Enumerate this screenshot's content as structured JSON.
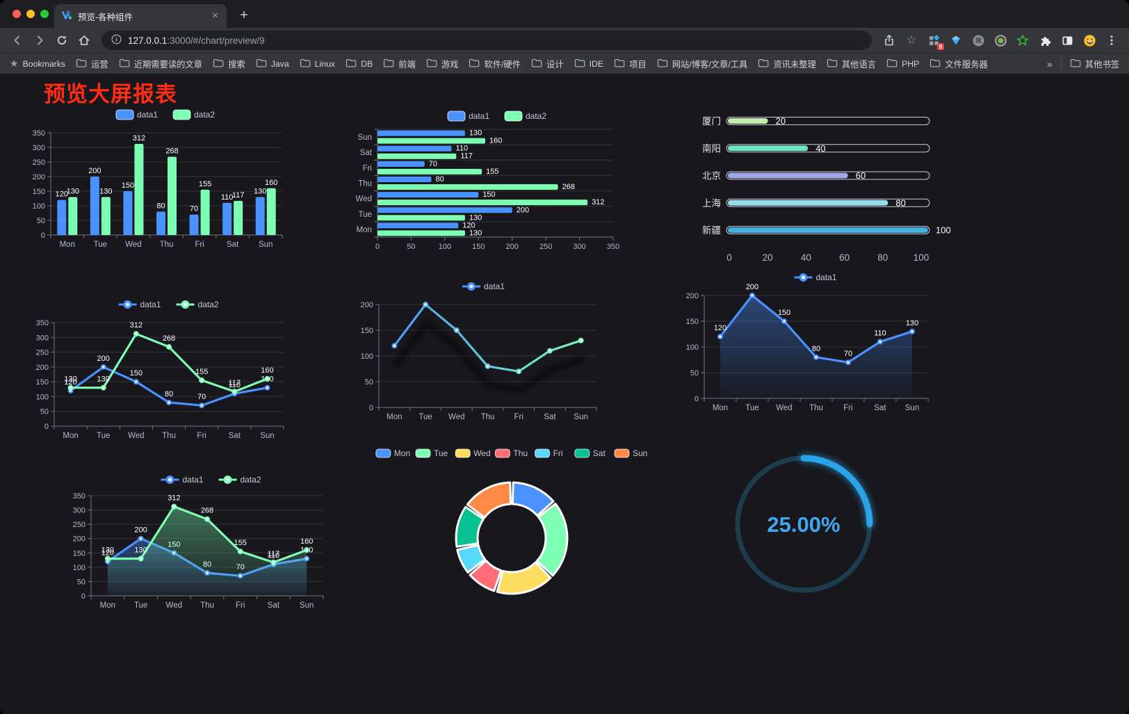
{
  "browser": {
    "tab": {
      "title": "预览-各种组件",
      "close_glyph": "×",
      "new_tab_glyph": "+"
    },
    "address": {
      "host": "127.0.0.1",
      "rest": ":3000/#/chart/preview/9"
    },
    "extensions_badge": "9",
    "bookmarks_bar": {
      "bookmarks_label": "Bookmarks",
      "folders": [
        "运营",
        "近期需要读的文章",
        "搜索",
        "Java",
        "Linux",
        "DB",
        "前端",
        "游戏",
        "软件/硬件",
        "设计",
        "IDE",
        "项目",
        "网站/博客/文章/工具",
        "资讯未整理",
        "其他语言",
        "PHP",
        "文件服务器"
      ],
      "overflow_glyph": "»",
      "other_bookmarks": "其他书签"
    }
  },
  "page": {
    "title": "预览大屏报表",
    "title_color": "#ff2d12",
    "background": "#17171d"
  },
  "chart_data": [
    {
      "name": "grouped-bar",
      "type": "bar",
      "categories": [
        "Mon",
        "Tue",
        "Wed",
        "Thu",
        "Fri",
        "Sat",
        "Sun"
      ],
      "series": [
        {
          "name": "data1",
          "color": "#4992ff",
          "values": [
            120,
            200,
            150,
            80,
            70,
            110,
            130
          ]
        },
        {
          "name": "data2",
          "color": "#7cffb2",
          "values": [
            130,
            130,
            312,
            268,
            155,
            117,
            160
          ]
        }
      ],
      "ylim": [
        0,
        350
      ],
      "ytick": 50,
      "legend_position": "top",
      "grid": true
    },
    {
      "name": "horizontal-grouped-bar",
      "type": "bar",
      "orientation": "horizontal",
      "categories": [
        "Mon",
        "Tue",
        "Wed",
        "Thu",
        "Fri",
        "Sat",
        "Sun"
      ],
      "series": [
        {
          "name": "data1",
          "color": "#4992ff",
          "values": [
            120,
            200,
            150,
            80,
            70,
            110,
            130
          ]
        },
        {
          "name": "data2",
          "color": "#7cffb2",
          "values": [
            130,
            130,
            312,
            268,
            155,
            117,
            160
          ]
        }
      ],
      "xlim": [
        0,
        350
      ],
      "xtick": 50,
      "legend_position": "top"
    },
    {
      "name": "capsule-progress-bar",
      "type": "bar",
      "orientation": "horizontal",
      "categories": [
        "厦门",
        "南阳",
        "北京",
        "上海",
        "新疆"
      ],
      "values": [
        20,
        40,
        60,
        80,
        100
      ],
      "colors": [
        "#c4ebad",
        "#6be6c1",
        "#a0a7e6",
        "#96dee8",
        "#3fb1e3"
      ],
      "xlim": [
        0,
        100
      ],
      "xticks": [
        0,
        20,
        40,
        60,
        80,
        100
      ]
    },
    {
      "name": "two-series-line",
      "type": "line",
      "categories": [
        "Mon",
        "Tue",
        "Wed",
        "Thu",
        "Fri",
        "Sat",
        "Sun"
      ],
      "series": [
        {
          "name": "data1",
          "color": "#4992ff",
          "values": [
            120,
            200,
            150,
            80,
            70,
            110,
            130
          ]
        },
        {
          "name": "data2",
          "color": "#7cffb2",
          "values": [
            130,
            130,
            312,
            268,
            155,
            117,
            160
          ]
        }
      ],
      "ylim": [
        0,
        350
      ],
      "ytick": 50,
      "labels": true
    },
    {
      "name": "gradient-shadow-line",
      "type": "line",
      "categories": [
        "Mon",
        "Tue",
        "Wed",
        "Thu",
        "Fri",
        "Sat",
        "Sun"
      ],
      "series": [
        {
          "name": "data1",
          "color": "#4992ff",
          "values": [
            120,
            200,
            150,
            80,
            70,
            110,
            130
          ]
        }
      ],
      "ylim": [
        0,
        200
      ],
      "ytick": 50,
      "labels": false,
      "shadow": true,
      "gradient": [
        "#4992ff",
        "#7cffb2"
      ]
    },
    {
      "name": "blue-area-line",
      "type": "area",
      "categories": [
        "Mon",
        "Tue",
        "Wed",
        "Thu",
        "Fri",
        "Sat",
        "Sun"
      ],
      "series": [
        {
          "name": "data1",
          "color": "#4992ff",
          "values": [
            120,
            200,
            150,
            80,
            70,
            110,
            130
          ]
        }
      ],
      "ylim": [
        0,
        200
      ],
      "ytick": 50,
      "labels": true
    },
    {
      "name": "two-series-area-line",
      "type": "area",
      "categories": [
        "Mon",
        "Tue",
        "Wed",
        "Thu",
        "Fri",
        "Sat",
        "Sun"
      ],
      "series": [
        {
          "name": "data1",
          "color": "#4992ff",
          "values": [
            120,
            200,
            150,
            80,
            70,
            110,
            130
          ]
        },
        {
          "name": "data2",
          "color": "#7cffb2",
          "values": [
            130,
            130,
            312,
            268,
            155,
            117,
            160
          ]
        }
      ],
      "ylim": [
        0,
        350
      ],
      "ytick": 50,
      "labels": true
    },
    {
      "name": "weekday-donut",
      "type": "pie",
      "categories": [
        "Mon",
        "Tue",
        "Wed",
        "Thu",
        "Fri",
        "Sat",
        "Sun"
      ],
      "values": [
        120,
        200,
        150,
        80,
        70,
        110,
        130
      ],
      "colors": [
        "#4992ff",
        "#7cffb2",
        "#fddd60",
        "#ff6e76",
        "#58d9f9",
        "#05c091",
        "#ff8a45"
      ],
      "legend_position": "top"
    },
    {
      "name": "progress-gauge",
      "type": "gauge",
      "value": 25,
      "label": "25.00%",
      "color": "#2aa3e8",
      "track_color": "#1d3d4d",
      "text_color": "#41a7ee"
    }
  ]
}
